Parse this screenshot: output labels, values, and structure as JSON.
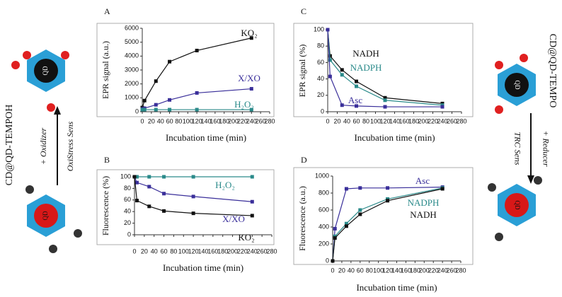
{
  "chart_data": [
    {
      "type": "line",
      "panel": "A",
      "xlabel": "Incubation time (min)",
      "ylabel": "EPR signal (a.u.)",
      "x": [
        0,
        5,
        30,
        60,
        120,
        240
      ],
      "xlim": [
        0,
        280
      ],
      "xticks": [
        0,
        20,
        40,
        60,
        80,
        100,
        120,
        140,
        160,
        180,
        200,
        220,
        240,
        260,
        280
      ],
      "ylim": [
        0,
        6000
      ],
      "yticks": [
        0,
        1000,
        2000,
        3000,
        4000,
        5000,
        6000
      ],
      "series": [
        {
          "name": "KO₂",
          "color": "#111111",
          "values": [
            300,
            800,
            2200,
            3600,
            4400,
            5300
          ]
        },
        {
          "name": "X/XO",
          "color": "#3a2f9a",
          "values": [
            200,
            250,
            500,
            850,
            1350,
            1650
          ]
        },
        {
          "name": "H₂O₂",
          "color": "#2a8a8a",
          "values": [
            150,
            150,
            150,
            150,
            150,
            150
          ]
        }
      ]
    },
    {
      "type": "line",
      "panel": "C",
      "xlabel": "Incubation time (min)",
      "ylabel": "EPR signal (%)",
      "x": [
        0,
        5,
        30,
        60,
        120,
        240
      ],
      "xlim": [
        0,
        280
      ],
      "xticks": [
        0,
        20,
        40,
        60,
        80,
        100,
        120,
        140,
        160,
        180,
        200,
        220,
        240,
        260,
        280
      ],
      "ylim": [
        0,
        100
      ],
      "yticks": [
        0,
        20,
        40,
        60,
        80,
        100
      ],
      "series": [
        {
          "name": "NADH",
          "color": "#111111",
          "values": [
            100,
            68,
            51,
            37,
            17,
            10
          ]
        },
        {
          "name": "NADPH",
          "color": "#2a8a8a",
          "values": [
            100,
            63,
            45,
            31,
            14,
            8
          ]
        },
        {
          "name": "Asc",
          "color": "#3a2f9a",
          "values": [
            100,
            43,
            8,
            7,
            6,
            6
          ]
        }
      ]
    },
    {
      "type": "line",
      "panel": "B",
      "xlabel": "Incubation time (min)",
      "ylabel": "Fluorescence (%)",
      "x": [
        0,
        5,
        30,
        60,
        120,
        240
      ],
      "xlim": [
        0,
        280
      ],
      "xticks": [
        0,
        20,
        40,
        60,
        80,
        100,
        120,
        140,
        160,
        180,
        200,
        220,
        240,
        260,
        280
      ],
      "ylim": [
        0,
        100
      ],
      "yticks": [
        0,
        20,
        40,
        60,
        80,
        100
      ],
      "series": [
        {
          "name": "H₂O₂",
          "color": "#2a8a8a",
          "values": [
            100,
            100,
            100,
            100,
            100,
            100
          ]
        },
        {
          "name": "X/XO",
          "color": "#3a2f9a",
          "values": [
            100,
            90,
            83,
            71,
            66,
            57
          ]
        },
        {
          "name": "KO₂",
          "color": "#111111",
          "values": [
            100,
            59,
            49,
            41,
            37,
            33
          ]
        }
      ]
    },
    {
      "type": "line",
      "panel": "D",
      "xlabel": "Incubation time (min)",
      "ylabel": "Fluorescence (a.u.)",
      "x": [
        0,
        5,
        30,
        60,
        120,
        240
      ],
      "xlim": [
        0,
        280
      ],
      "xticks": [
        0,
        20,
        40,
        60,
        80,
        100,
        120,
        140,
        160,
        180,
        200,
        220,
        240,
        260,
        280
      ],
      "ylim": [
        0,
        1000
      ],
      "yticks": [
        0,
        200,
        400,
        600,
        800,
        1000
      ],
      "series": [
        {
          "name": "Asc",
          "color": "#3a2f9a",
          "values": [
            0,
            380,
            850,
            860,
            860,
            870
          ]
        },
        {
          "name": "NADPH",
          "color": "#2a8a8a",
          "values": [
            0,
            290,
            440,
            600,
            730,
            860
          ]
        },
        {
          "name": "NADH",
          "color": "#111111",
          "values": [
            0,
            270,
            410,
            550,
            710,
            850
          ]
        }
      ]
    }
  ],
  "left_panel": {
    "label": "CD@QD-TEMPOH",
    "reagent": "+ Oxidizer",
    "sensor": "OxiStress Sens"
  },
  "right_panel": {
    "label": "CD@QD-TEMPO",
    "reagent": "+ Reducer",
    "sensor": "TRC Sens"
  },
  "particle_label": "QD"
}
